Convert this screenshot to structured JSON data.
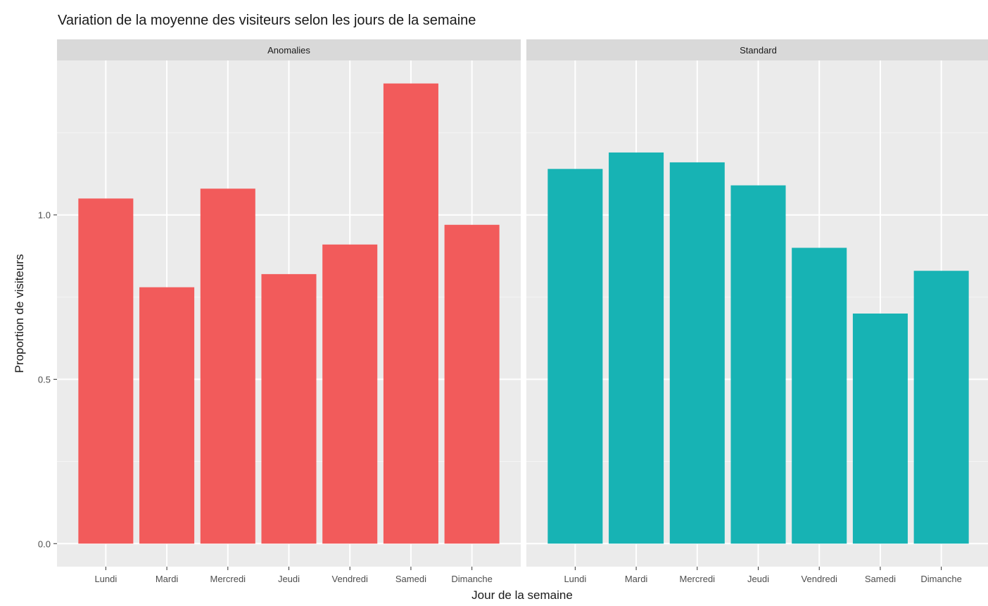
{
  "chart_data": {
    "type": "bar",
    "title": "Variation de la moyenne des visiteurs selon les jours de la semaine",
    "xlabel": "Jour de la semaine",
    "ylabel": "Proportion de visiteurs",
    "ylim": [
      -0.07,
      1.47
    ],
    "yticks": [
      0.0,
      0.5,
      1.0
    ],
    "ytick_labels": [
      "0.0",
      "0.5",
      "1.0"
    ],
    "grid": true,
    "legend": "none",
    "categories": [
      "Lundi",
      "Mardi",
      "Mercredi",
      "Jeudi",
      "Vendredi",
      "Samedi",
      "Dimanche"
    ],
    "panels": [
      {
        "name": "Anomalies",
        "color": "#F25B5B",
        "values": [
          1.05,
          0.78,
          1.08,
          0.82,
          0.91,
          1.4,
          0.97
        ]
      },
      {
        "name": "Standard",
        "color": "#17B3B4",
        "values": [
          1.14,
          1.19,
          1.16,
          1.09,
          0.9,
          0.7,
          0.83
        ]
      }
    ],
    "colors": {
      "panel_background": "#EBEBEB",
      "strip_background": "#D9D9D9",
      "grid_major": "#FFFFFF",
      "grid_minor": "#F5F5F5",
      "text": "#1A1A1A",
      "tick_text": "#4D4D4D"
    }
  }
}
